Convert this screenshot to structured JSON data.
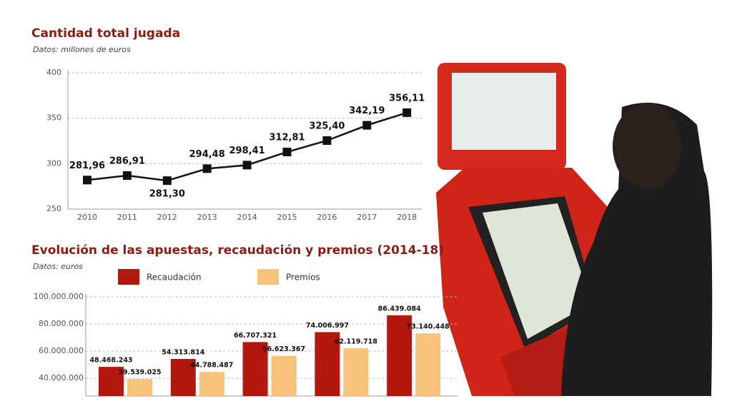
{
  "chart_data": [
    {
      "type": "line",
      "title": "Cantidad total jugada",
      "subtitle": "Datos: millones de euros",
      "categories": [
        "2010",
        "2011",
        "2012",
        "2013",
        "2014",
        "2015",
        "2016",
        "2017",
        "2018"
      ],
      "values": [
        281.96,
        286.91,
        281.3,
        294.48,
        298.41,
        312.81,
        325.4,
        342.19,
        356.11
      ],
      "value_labels": [
        "281,96",
        "286,91",
        "281,30",
        "294,48",
        "298,41",
        "312,81",
        "325,40",
        "342,19",
        "356,11"
      ],
      "color": "#111111",
      "ylim": [
        250,
        400
      ],
      "yticks": [
        250,
        300,
        350,
        400
      ],
      "grid": true
    },
    {
      "type": "bar",
      "title": "Evolución de las apuestas, recaudación y premios (2014-18)",
      "subtitle": "Datos: euros",
      "categories": [
        null,
        null,
        null,
        null,
        null
      ],
      "series": [
        {
          "name": "Recaudación",
          "color": "#b3180f",
          "values": [
            48468243,
            54313814,
            66707321,
            74006997,
            86439084
          ],
          "value_labels": [
            "48.468.243",
            "54.313.814",
            "66.707.321",
            "74.006.997",
            "86.439.084"
          ]
        },
        {
          "name": "Premios",
          "color": "#f7c27c",
          "values": [
            39539025,
            44788487,
            56623367,
            62119718,
            73140448
          ],
          "value_labels": [
            "39.539.025",
            "44.788.487",
            "56.623.367",
            "62.119.718",
            "73.140.448"
          ]
        }
      ],
      "ylim": [
        27000000,
        100000000
      ],
      "yticks": [
        {
          "value": 40000000,
          "label": "40.000.000"
        },
        {
          "value": 60000000,
          "label": "60.000.000"
        },
        {
          "value": 80000000,
          "label": "80.000.000"
        },
        {
          "value": 100000000,
          "label": "100.000.000"
        }
      ],
      "grid": true
    }
  ]
}
